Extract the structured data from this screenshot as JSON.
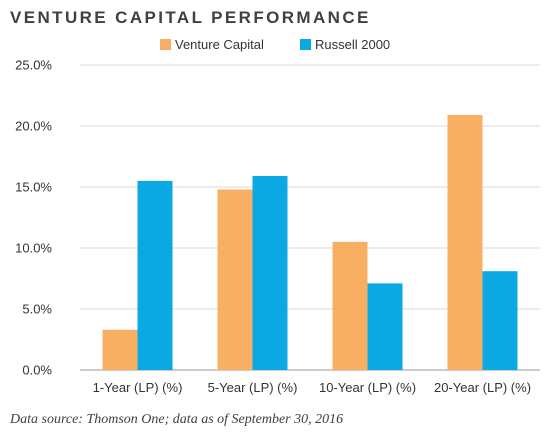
{
  "chart_data": {
    "type": "bar",
    "title": "VENTURE CAPITAL PERFORMANCE",
    "categories": [
      "1-Year (LP) (%)",
      "5-Year (LP) (%)",
      "10-Year (LP) (%)",
      "20-Year (LP) (%)"
    ],
    "series": [
      {
        "name": "Venture Capital",
        "color": "#F9AF63",
        "values": [
          3.3,
          14.8,
          10.5,
          20.9
        ]
      },
      {
        "name": "Russell 2000",
        "color": "#0BA9E4",
        "values": [
          15.5,
          15.9,
          7.1,
          8.1
        ]
      }
    ],
    "yticks": [
      "0.0%",
      "5.0%",
      "10.0%",
      "15.0%",
      "20.0%",
      "25.0%"
    ],
    "ylim": [
      0,
      25
    ],
    "xlabel": "",
    "ylabel": "",
    "grid": true,
    "legend_position": "top-center",
    "source": "Data source: Thomson One; data as of September 30, 2016"
  }
}
